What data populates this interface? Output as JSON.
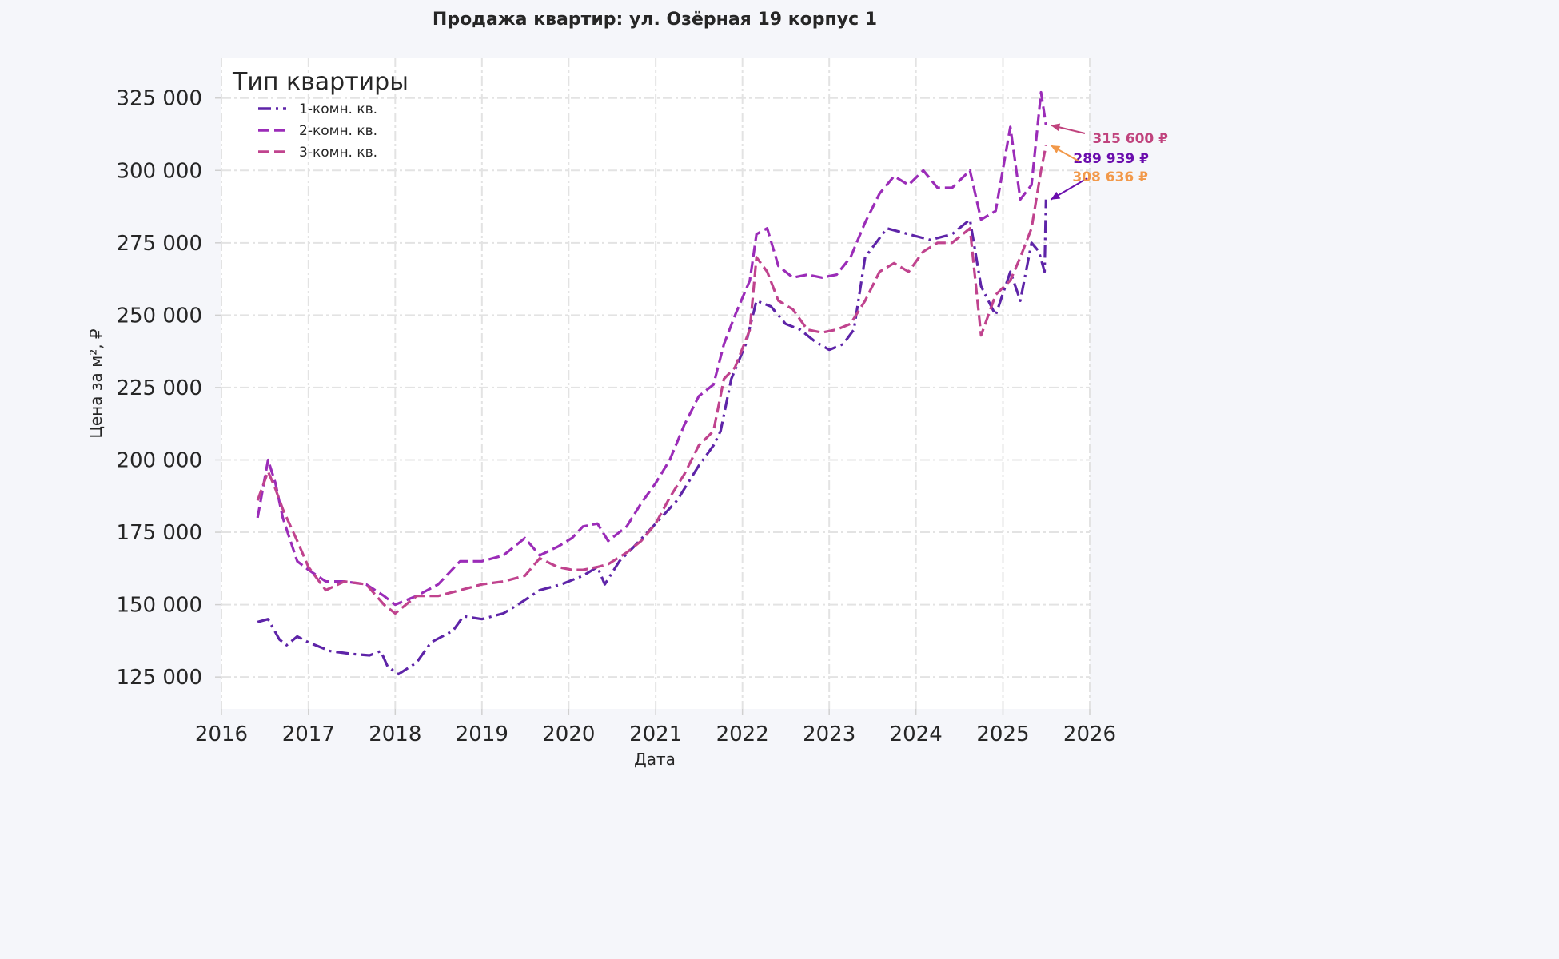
{
  "chart_data": {
    "type": "line",
    "title": "Продажа квартир: ул. Озёрная 19 корпус 1",
    "xlabel": "Дата",
    "ylabel": "Цена за м², ₽",
    "xlim": [
      "2016-01-01",
      "2026-01-01"
    ],
    "ylim": [
      114000,
      339000
    ],
    "x_ticks": [
      "2016",
      "2017",
      "2018",
      "2019",
      "2020",
      "2021",
      "2022",
      "2023",
      "2024",
      "2025",
      "2026"
    ],
    "y_ticks": [
      125000,
      150000,
      175000,
      200000,
      225000,
      250000,
      275000,
      300000,
      325000
    ],
    "y_tick_labels": [
      "125 000",
      "150 000",
      "175 000",
      "200 000",
      "225 000",
      "250 000",
      "275 000",
      "300 000",
      "325 000"
    ],
    "grid": true,
    "legend": {
      "title": "Тип квартиры",
      "placement": "top-left"
    },
    "series": [
      {
        "name": "1-комн. кв.",
        "color": "#5e24a8",
        "dash": "dashdot",
        "points": [
          [
            "2016-06-01",
            144000
          ],
          [
            "2016-07-15",
            145000
          ],
          [
            "2016-09-01",
            138000
          ],
          [
            "2016-10-01",
            136000
          ],
          [
            "2016-11-15",
            139000
          ],
          [
            "2017-01-01",
            137000
          ],
          [
            "2017-04-01",
            134000
          ],
          [
            "2017-07-01",
            133000
          ],
          [
            "2017-09-15",
            132500
          ],
          [
            "2017-11-01",
            134000
          ],
          [
            "2017-12-01",
            128500
          ],
          [
            "2018-01-15",
            126000
          ],
          [
            "2018-04-01",
            130000
          ],
          [
            "2018-06-01",
            137000
          ],
          [
            "2018-09-01",
            141000
          ],
          [
            "2018-10-15",
            146000
          ],
          [
            "2019-01-01",
            145000
          ],
          [
            "2019-04-01",
            147000
          ],
          [
            "2019-06-01",
            150000
          ],
          [
            "2019-09-01",
            155000
          ],
          [
            "2019-12-01",
            157000
          ],
          [
            "2020-03-01",
            160000
          ],
          [
            "2020-05-01",
            163000
          ],
          [
            "2020-06-01",
            157000
          ],
          [
            "2020-08-01",
            165000
          ],
          [
            "2020-10-01",
            170000
          ],
          [
            "2021-01-01",
            178000
          ],
          [
            "2021-04-01",
            186000
          ],
          [
            "2021-07-01",
            198000
          ],
          [
            "2021-09-01",
            205000
          ],
          [
            "2021-10-01",
            210000
          ],
          [
            "2021-11-15",
            228000
          ],
          [
            "2022-01-15",
            240000
          ],
          [
            "2022-03-01",
            255000
          ],
          [
            "2022-05-01",
            253000
          ],
          [
            "2022-07-01",
            247000
          ],
          [
            "2022-09-01",
            245000
          ],
          [
            "2022-11-01",
            241000
          ],
          [
            "2023-01-01",
            238000
          ],
          [
            "2023-03-01",
            240000
          ],
          [
            "2023-04-15",
            245000
          ],
          [
            "2023-06-01",
            270000
          ],
          [
            "2023-09-01",
            280000
          ],
          [
            "2023-12-01",
            278000
          ],
          [
            "2024-03-01",
            276000
          ],
          [
            "2024-06-01",
            278000
          ],
          [
            "2024-08-15",
            283000
          ],
          [
            "2024-10-01",
            260000
          ],
          [
            "2024-12-01",
            250000
          ],
          [
            "2025-02-01",
            265000
          ],
          [
            "2025-03-15",
            255000
          ],
          [
            "2025-05-01",
            275000
          ],
          [
            "2025-06-01",
            272000
          ],
          [
            "2025-06-25",
            265000
          ],
          [
            "2025-07-01",
            289939
          ]
        ]
      },
      {
        "name": "2-комн. кв.",
        "color": "#9b2cb8",
        "dash": "dashed",
        "points": [
          [
            "2016-06-01",
            180000
          ],
          [
            "2016-07-15",
            200000
          ],
          [
            "2016-08-15",
            192000
          ],
          [
            "2016-09-15",
            180000
          ],
          [
            "2016-11-15",
            165000
          ],
          [
            "2017-01-01",
            162000
          ],
          [
            "2017-03-15",
            158000
          ],
          [
            "2017-06-01",
            158000
          ],
          [
            "2017-09-01",
            157000
          ],
          [
            "2017-11-15",
            153000
          ],
          [
            "2018-01-01",
            150000
          ],
          [
            "2018-04-01",
            153000
          ],
          [
            "2018-07-01",
            157000
          ],
          [
            "2018-10-01",
            165000
          ],
          [
            "2019-01-01",
            165000
          ],
          [
            "2019-04-01",
            167000
          ],
          [
            "2019-07-01",
            173000
          ],
          [
            "2019-09-01",
            167000
          ],
          [
            "2019-11-15",
            170000
          ],
          [
            "2020-01-15",
            173000
          ],
          [
            "2020-03-01",
            177000
          ],
          [
            "2020-05-01",
            178000
          ],
          [
            "2020-06-15",
            172000
          ],
          [
            "2020-09-01",
            177000
          ],
          [
            "2020-11-01",
            185000
          ],
          [
            "2021-01-01",
            192000
          ],
          [
            "2021-03-01",
            200000
          ],
          [
            "2021-05-01",
            212000
          ],
          [
            "2021-07-01",
            222000
          ],
          [
            "2021-09-01",
            226000
          ],
          [
            "2021-10-15",
            240000
          ],
          [
            "2021-12-01",
            250000
          ],
          [
            "2022-02-01",
            262000
          ],
          [
            "2022-03-01",
            278000
          ],
          [
            "2022-04-15",
            280000
          ],
          [
            "2022-06-01",
            267000
          ],
          [
            "2022-08-01",
            263000
          ],
          [
            "2022-10-01",
            264000
          ],
          [
            "2022-12-01",
            263000
          ],
          [
            "2023-02-01",
            264000
          ],
          [
            "2023-04-01",
            270000
          ],
          [
            "2023-06-01",
            282000
          ],
          [
            "2023-08-01",
            292000
          ],
          [
            "2023-10-01",
            298000
          ],
          [
            "2023-12-01",
            295000
          ],
          [
            "2024-02-01",
            300000
          ],
          [
            "2024-04-01",
            294000
          ],
          [
            "2024-06-01",
            294000
          ],
          [
            "2024-08-15",
            300000
          ],
          [
            "2024-10-01",
            283000
          ],
          [
            "2024-12-01",
            286000
          ],
          [
            "2025-02-01",
            315000
          ],
          [
            "2025-03-15",
            290000
          ],
          [
            "2025-05-01",
            295000
          ],
          [
            "2025-06-10",
            327000
          ],
          [
            "2025-07-01",
            315600
          ]
        ]
      },
      {
        "name": "3-комн. кв.",
        "color": "#c0438e",
        "dash": "dashed",
        "points": [
          [
            "2016-06-01",
            186000
          ],
          [
            "2016-07-15",
            196000
          ],
          [
            "2016-08-15",
            190000
          ],
          [
            "2016-09-15",
            183000
          ],
          [
            "2016-11-15",
            172000
          ],
          [
            "2017-01-01",
            163000
          ],
          [
            "2017-03-15",
            155000
          ],
          [
            "2017-06-01",
            158000
          ],
          [
            "2017-09-01",
            157000
          ],
          [
            "2017-11-15",
            150000
          ],
          [
            "2018-01-01",
            147000
          ],
          [
            "2018-04-01",
            153000
          ],
          [
            "2018-07-01",
            153000
          ],
          [
            "2018-10-01",
            155000
          ],
          [
            "2019-01-01",
            157000
          ],
          [
            "2019-04-01",
            158000
          ],
          [
            "2019-07-01",
            160000
          ],
          [
            "2019-09-01",
            166000
          ],
          [
            "2019-11-15",
            163000
          ],
          [
            "2020-01-15",
            162000
          ],
          [
            "2020-03-01",
            162000
          ],
          [
            "2020-05-01",
            163000
          ],
          [
            "2020-06-15",
            164000
          ],
          [
            "2020-09-01",
            168000
          ],
          [
            "2020-11-01",
            172000
          ],
          [
            "2021-01-01",
            178000
          ],
          [
            "2021-03-01",
            187000
          ],
          [
            "2021-05-01",
            195000
          ],
          [
            "2021-07-01",
            205000
          ],
          [
            "2021-09-01",
            210000
          ],
          [
            "2021-10-15",
            228000
          ],
          [
            "2021-12-01",
            232000
          ],
          [
            "2022-02-01",
            245000
          ],
          [
            "2022-03-01",
            270000
          ],
          [
            "2022-04-15",
            265000
          ],
          [
            "2022-06-01",
            255000
          ],
          [
            "2022-08-01",
            252000
          ],
          [
            "2022-10-01",
            245000
          ],
          [
            "2022-12-01",
            244000
          ],
          [
            "2023-02-01",
            245000
          ],
          [
            "2023-04-01",
            247000
          ],
          [
            "2023-06-01",
            255000
          ],
          [
            "2023-08-01",
            265000
          ],
          [
            "2023-10-01",
            268000
          ],
          [
            "2023-12-01",
            265000
          ],
          [
            "2024-02-01",
            272000
          ],
          [
            "2024-04-01",
            275000
          ],
          [
            "2024-06-01",
            275000
          ],
          [
            "2024-08-15",
            280000
          ],
          [
            "2024-10-01",
            243000
          ],
          [
            "2024-12-01",
            257000
          ],
          [
            "2025-02-01",
            262000
          ],
          [
            "2025-03-15",
            270000
          ],
          [
            "2025-05-01",
            280000
          ],
          [
            "2025-06-10",
            300000
          ],
          [
            "2025-07-01",
            308636
          ]
        ]
      }
    ],
    "annotations": [
      {
        "text": "315 600 ₽",
        "color": "#c0437d",
        "x": "2025-07-01",
        "y": 315600
      },
      {
        "text": "289 939 ₽",
        "color": "#6a0dad",
        "x": "2025-07-01",
        "y": 289939
      },
      {
        "text": "308 636 ₽",
        "color": "#f2994a",
        "x": "2025-07-01",
        "y": 308636
      }
    ]
  }
}
